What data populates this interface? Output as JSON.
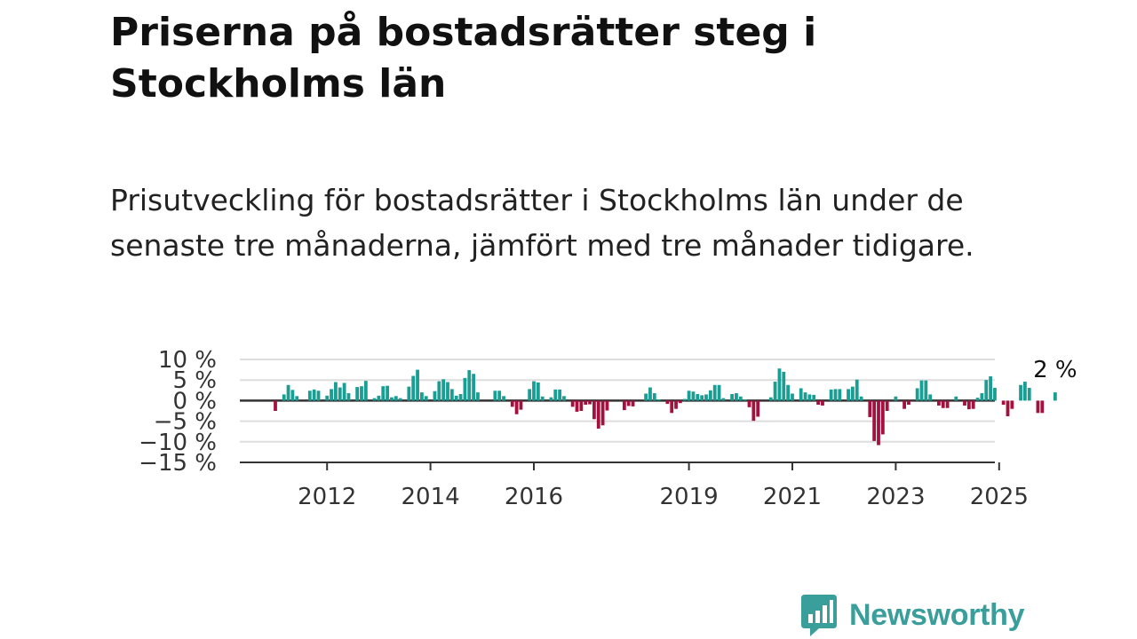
{
  "title": "Priserna på bostadsrätter steg i Stockholms län",
  "subtitle": "Prisutveckling för bostadsrätter i Stockholms län under de senaste tre månaderna, jämfört med tre månader tidigare.",
  "brand": {
    "name": "Newsworthy",
    "color": "#3a9e9b",
    "icon": "newsworthy-logo-icon"
  },
  "chart_data": {
    "type": "bar",
    "x_start": "2011-01",
    "x_step": "month",
    "ylim": [
      -15,
      10
    ],
    "yticks": [
      10,
      5,
      0,
      -5,
      -10,
      -15
    ],
    "ytick_labels": [
      "10 %",
      "5 %",
      "0 %",
      "−5 %",
      "−10 %",
      "−15 %"
    ],
    "xticks": [
      2012,
      2014,
      2016,
      2019,
      2021,
      2023,
      2025
    ],
    "grid": true,
    "colors": {
      "positive": "#1a9e93",
      "negative": "#a3123f"
    },
    "last_value_label": "2 %",
    "values": [
      -2.5,
      0,
      1.5,
      3.8,
      2.6,
      1.1,
      0,
      0,
      2.4,
      2.7,
      2.4,
      0,
      1.2,
      2.8,
      4.5,
      3.2,
      4.3,
      1.8,
      0,
      3.3,
      3.5,
      4.8,
      0,
      0.6,
      1.2,
      3.5,
      3.6,
      0.8,
      1.1,
      0.6,
      0,
      3.4,
      6.0,
      7.5,
      2.0,
      1.1,
      0,
      2.3,
      4.7,
      5.2,
      4.5,
      2.8,
      1.2,
      1.6,
      5.5,
      7.4,
      6.5,
      2.0,
      0,
      0,
      0,
      2.4,
      2.4,
      1.1,
      0,
      -1.5,
      -3.3,
      -2.2,
      0,
      2.8,
      4.7,
      4.4,
      1.0,
      0,
      0.8,
      2.7,
      2.7,
      1.1,
      0,
      -1.5,
      -2.7,
      -2.5,
      -1.0,
      -0.9,
      -4.5,
      -6.8,
      -6.0,
      -2.4,
      0,
      0,
      0,
      -2.3,
      -1.3,
      -1.4,
      0,
      0,
      1.7,
      3.2,
      1.8,
      0.3,
      0,
      -0.8,
      -3.0,
      -2.0,
      -0.6,
      0.4,
      2.4,
      2.2,
      1.6,
      1.3,
      1.5,
      2.5,
      3.8,
      3.8,
      0.6,
      0,
      1.6,
      1.8,
      1.0,
      0.3,
      -1.6,
      -4.9,
      -3.9,
      0,
      0,
      0.8,
      4.6,
      7.8,
      7.0,
      3.8,
      1.7,
      0,
      3.0,
      2.0,
      1.5,
      1.4,
      -1.0,
      -1.2,
      0,
      2.7,
      2.8,
      2.8,
      0,
      2.8,
      3.4,
      5.1,
      1.0,
      0,
      -4.0,
      -9.8,
      -10.8,
      -8.2,
      -2.5,
      0,
      1.0,
      0,
      -2.0,
      -1.0,
      0,
      3.0,
      4.9,
      4.9,
      1.5,
      0,
      -1.2,
      -1.8,
      -1.8,
      0,
      1.0,
      0,
      -1.2,
      -2.1,
      -2.0,
      0.7,
      1.8,
      5.0,
      5.9,
      3.1,
      0,
      -1.0,
      -3.8,
      -2.0,
      0,
      3.8,
      4.6,
      3.1,
      0,
      -3.0,
      -3.0,
      0,
      0,
      2.0
    ]
  }
}
